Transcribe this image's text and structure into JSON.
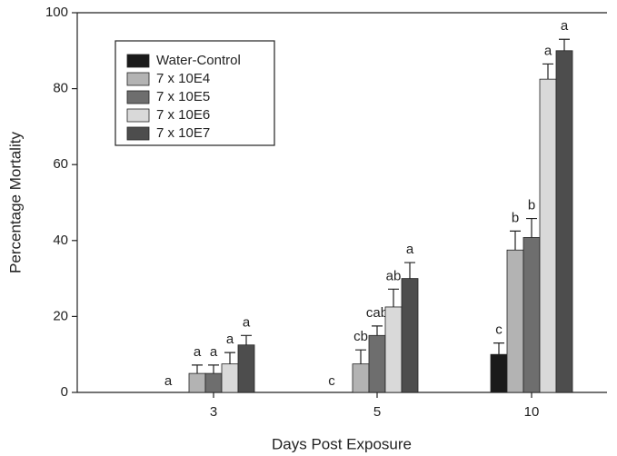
{
  "chart_data": {
    "type": "bar",
    "x_label": "Days Post Exposure",
    "y_label": "Percentage Mortality",
    "categories": [
      "3",
      "5",
      "10"
    ],
    "series": [
      {
        "name": "Water-Control",
        "color": "#1a1a1a",
        "values": [
          0,
          0,
          10
        ],
        "errors": [
          null,
          null,
          3
        ],
        "labels": [
          "a",
          "c",
          "c"
        ]
      },
      {
        "name": "7 x 10E4",
        "color": "#b3b3b3",
        "values": [
          5,
          7.5,
          37.5
        ],
        "errors": [
          2.2,
          3.7,
          5
        ],
        "labels": [
          "a",
          "cb",
          "b"
        ]
      },
      {
        "name": "7 x 10E5",
        "color": "#6e6e6e",
        "values": [
          5,
          15,
          40.8
        ],
        "errors": [
          2.2,
          2.5,
          5
        ],
        "labels": [
          "a",
          "cab",
          "b"
        ]
      },
      {
        "name": "7 x 10E6",
        "color": "#d9d9d9",
        "values": [
          7.5,
          22.5,
          82.5
        ],
        "errors": [
          3,
          4.7,
          4
        ],
        "labels": [
          "a",
          "ab",
          "a"
        ]
      },
      {
        "name": "7 x 10E7",
        "color": "#4d4d4d",
        "values": [
          12.5,
          30,
          90
        ],
        "errors": [
          2.5,
          4.2,
          3
        ],
        "labels": [
          "a",
          "a",
          "a"
        ]
      }
    ],
    "ylim": [
      0,
      100
    ],
    "yticks": [
      0,
      20,
      40,
      60,
      80,
      100
    ],
    "grid": false,
    "legend": "upper left"
  }
}
